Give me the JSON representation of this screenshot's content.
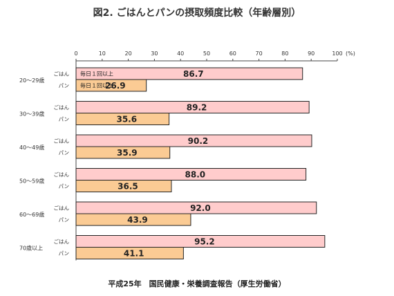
{
  "title": "図2. ごはんとパンの摂取頻度比較（年齢層別）",
  "source": "平成25年　国民健康・栄養調査報告（厚生労働省）",
  "chart_data": {
    "type": "bar",
    "orientation": "horizontal",
    "categories": [
      "20～29歳",
      "30～39歳",
      "40～49歳",
      "50～59歳",
      "60～69歳",
      "70歳以上"
    ],
    "series": [
      {
        "name": "ごはん",
        "annotation": "毎日１回以上",
        "color": "#ffcccc",
        "values": [
          86.7,
          89.2,
          90.2,
          88.0,
          92.0,
          95.2
        ]
      },
      {
        "name": "パン",
        "annotation": "毎日１回以上",
        "color": "#fbcb94",
        "values": [
          26.9,
          35.6,
          35.9,
          36.5,
          43.9,
          41.1
        ]
      }
    ],
    "x_ticks": [
      "0",
      "10",
      "20",
      "30",
      "40",
      "50",
      "60",
      "70",
      "80",
      "90",
      "100"
    ],
    "unit": "(%)",
    "xlim": [
      0,
      100
    ],
    "grid": false,
    "legend": "none"
  }
}
